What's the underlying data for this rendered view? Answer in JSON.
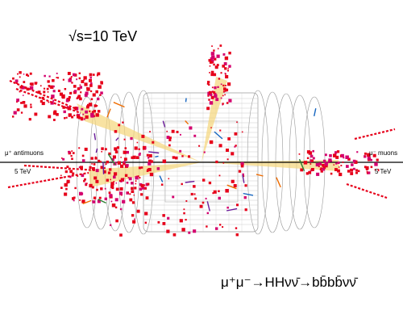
{
  "energy_label": "√s=10 TeV",
  "left_beam": {
    "particle_label": "μ⁺ antimuons",
    "energy_label": "5 TeV"
  },
  "right_beam": {
    "particle_label": "μ⁻ muons",
    "energy_label": "5 TeV"
  },
  "process_label": "μ⁺μ⁻→HHνν̄→bb̄bb̄νν̄",
  "colors": {
    "hits": "#e6001a",
    "hits_secondary": "#d4006e",
    "jet_cones": "#f5d67a",
    "detector_outline": "#9a9a9a",
    "beam_line": "#000000",
    "tracks": [
      "#2e7d32",
      "#6a1b9a",
      "#ef6c00",
      "#1565c0"
    ]
  }
}
